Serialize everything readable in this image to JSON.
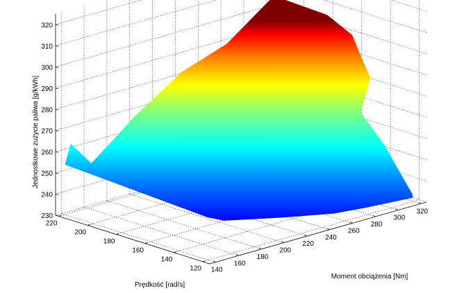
{
  "chart_data": {
    "type": "surface",
    "title": "",
    "xlabel": "Prędkość [rad/s]",
    "ylabel": "Moment obciążenia [Nm]",
    "zlabel": "Jednostkowe zużycie paliwa [g/kWh]",
    "x_ticks": [
      120,
      140,
      160,
      180,
      200,
      220
    ],
    "y_ticks": [
      140,
      160,
      180,
      200,
      220,
      240,
      260,
      280,
      300,
      320
    ],
    "z_ticks": [
      230,
      240,
      250,
      260,
      270,
      280,
      290,
      300,
      310,
      320
    ],
    "z_tick_labels": [
      "230",
      "240",
      "250",
      "260",
      "270",
      "280",
      "290",
      "300",
      "310",
      "320"
    ],
    "xlim": [
      115,
      222
    ],
    "ylim": [
      135,
      325
    ],
    "zlim": [
      230,
      325
    ],
    "grid": true,
    "colormap": "jet",
    "boundary": [
      {
        "x": 221,
        "y": 142,
        "z": 253
      },
      {
        "x": 214,
        "y": 138,
        "z": 265
      },
      {
        "x": 209,
        "y": 150,
        "z": 255
      },
      {
        "x": 207,
        "y": 185,
        "z": 272
      },
      {
        "x": 194,
        "y": 210,
        "z": 292
      },
      {
        "x": 180,
        "y": 232,
        "z": 305
      },
      {
        "x": 171,
        "y": 262,
        "z": 325
      },
      {
        "x": 168,
        "y": 305,
        "z": 310
      },
      {
        "x": 161,
        "y": 318,
        "z": 300
      },
      {
        "x": 156,
        "y": 320,
        "z": 290
      },
      {
        "x": 150,
        "y": 320,
        "z": 282
      },
      {
        "x": 147,
        "y": 308,
        "z": 268
      },
      {
        "x": 140,
        "y": 320,
        "z": 252
      },
      {
        "x": 124,
        "y": 324,
        "z": 232
      },
      {
        "x": 122,
        "y": 322,
        "z": 231
      },
      {
        "x": 121,
        "y": 280,
        "z": 233
      },
      {
        "x": 120,
        "y": 250,
        "z": 235
      },
      {
        "x": 120,
        "y": 205,
        "z": 240
      },
      {
        "x": 121,
        "y": 155,
        "z": 246
      },
      {
        "x": 121,
        "y": 140,
        "z": 250
      }
    ]
  }
}
